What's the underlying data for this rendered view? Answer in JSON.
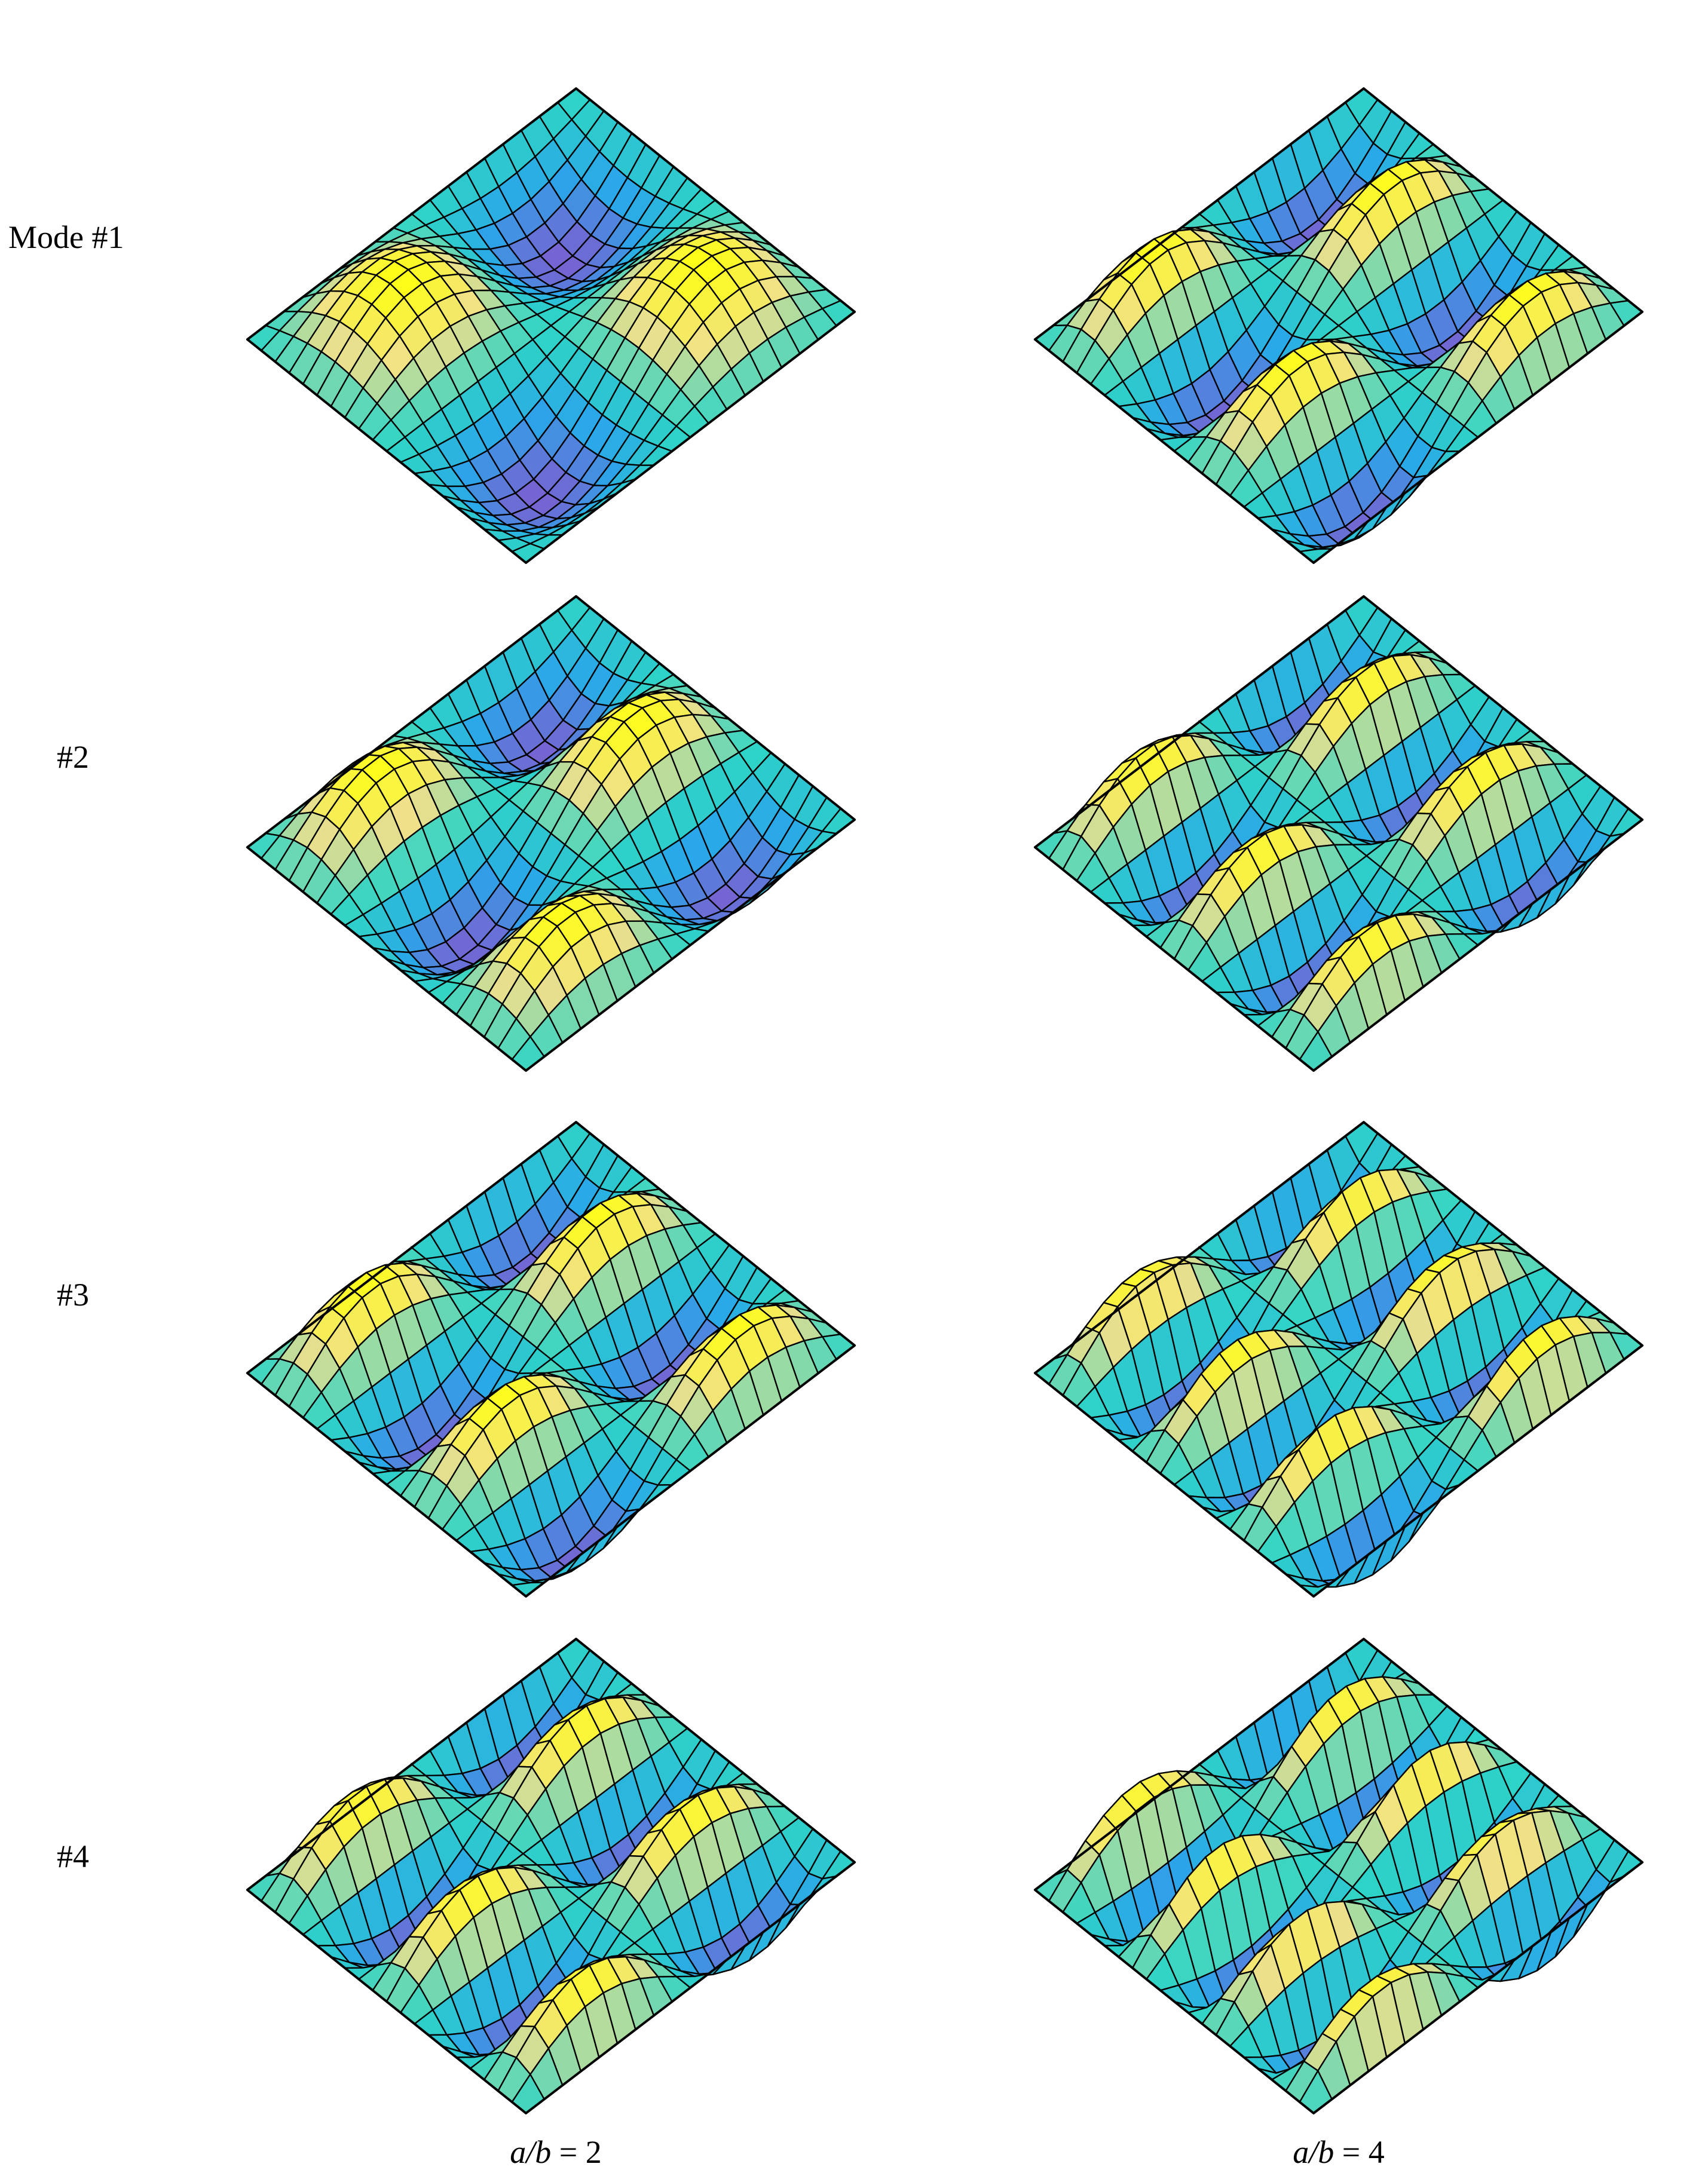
{
  "figure": {
    "rows": [
      {
        "label": "Mode #1",
        "mode": 1
      },
      {
        "label": "#2",
        "mode": 2
      },
      {
        "label": "#3",
        "mode": 3
      },
      {
        "label": "#4",
        "mode": 4
      }
    ],
    "columns": [
      {
        "label_var": "a/b",
        "label_rest": " = 2",
        "aspect_ratio": 2
      },
      {
        "label_var": "a/b",
        "label_rest": " = 4",
        "aspect_ratio": 4
      }
    ],
    "colormap": [
      "#7b5fd0",
      "#2aa6ea",
      "#2ed4c6",
      "#f0e08a",
      "#ffff10"
    ]
  }
}
